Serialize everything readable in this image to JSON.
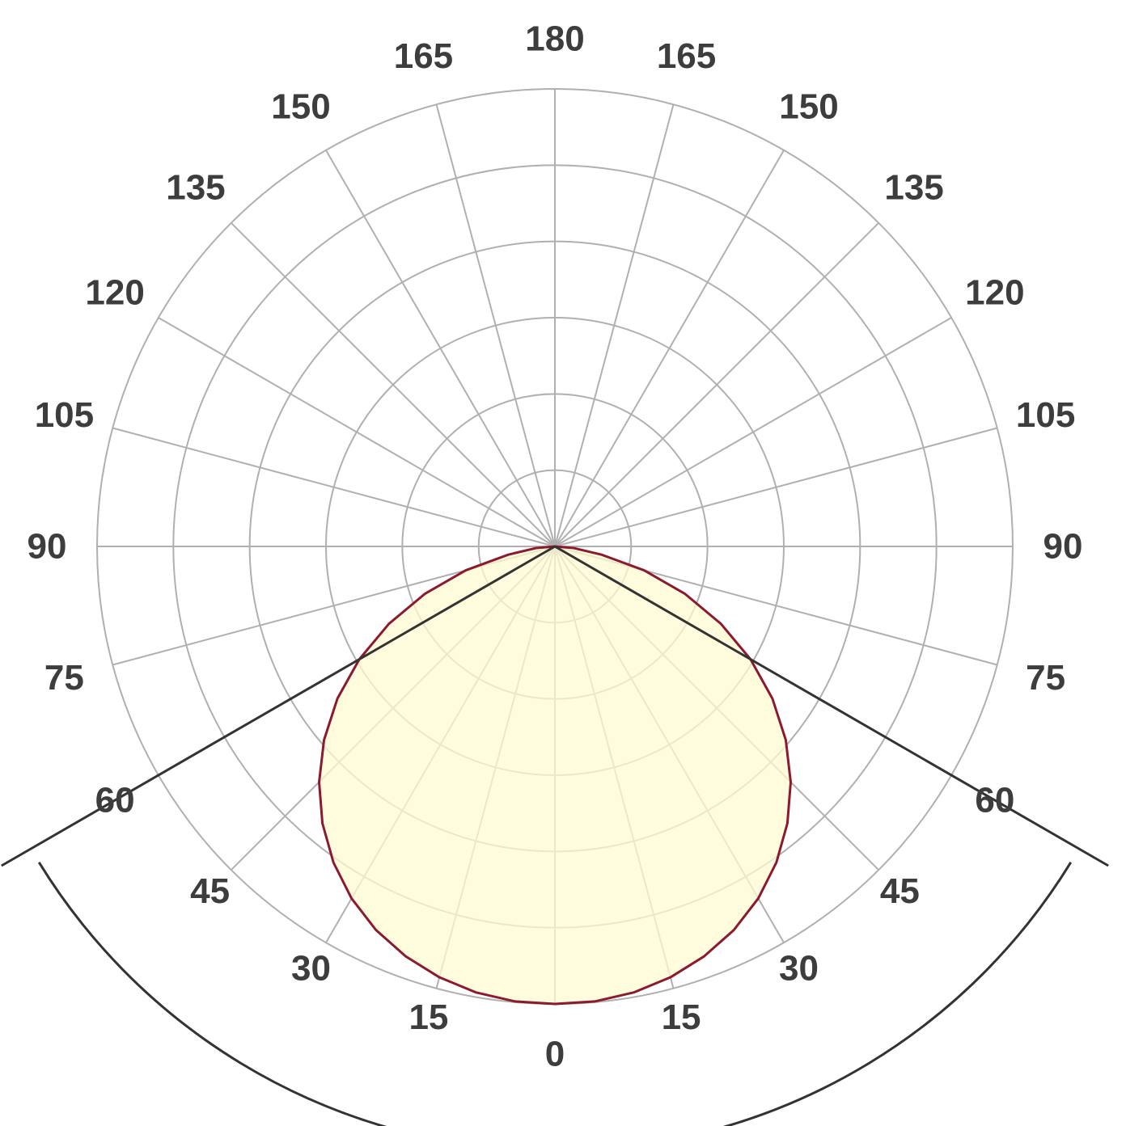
{
  "chart_data": {
    "type": "polar",
    "title": "",
    "angle_labels": [
      {
        "angle": 180,
        "label": "180"
      },
      {
        "angle": -165,
        "label": "165"
      },
      {
        "angle": 165,
        "label": "165"
      },
      {
        "angle": -150,
        "label": "150"
      },
      {
        "angle": 150,
        "label": "150"
      },
      {
        "angle": -135,
        "label": "135"
      },
      {
        "angle": 135,
        "label": "135"
      },
      {
        "angle": -120,
        "label": "120"
      },
      {
        "angle": 120,
        "label": "120"
      },
      {
        "angle": -105,
        "label": "105"
      },
      {
        "angle": 105,
        "label": "105"
      },
      {
        "angle": -90,
        "label": "90"
      },
      {
        "angle": 90,
        "label": "90"
      },
      {
        "angle": -75,
        "label": "75"
      },
      {
        "angle": 75,
        "label": "75"
      },
      {
        "angle": -60,
        "label": "60"
      },
      {
        "angle": 60,
        "label": "60"
      },
      {
        "angle": -45,
        "label": "45"
      },
      {
        "angle": 45,
        "label": "45"
      },
      {
        "angle": -30,
        "label": "30"
      },
      {
        "angle": 30,
        "label": "30"
      },
      {
        "angle": -15,
        "label": "15"
      },
      {
        "angle": 15,
        "label": "15"
      },
      {
        "angle": 0,
        "label": "0"
      }
    ],
    "spoke_step_deg": 15,
    "rings": 6,
    "r_max": 6,
    "curve": {
      "angles": [
        0,
        5,
        10,
        15,
        20,
        25,
        30,
        35,
        40,
        45,
        50,
        55,
        60,
        65,
        70,
        75,
        80,
        85,
        90
      ],
      "values": [
        6.0,
        5.99,
        5.94,
        5.85,
        5.72,
        5.55,
        5.33,
        5.06,
        4.74,
        4.37,
        3.95,
        3.48,
        2.96,
        2.4,
        1.81,
        1.21,
        0.62,
        0.25,
        0
      ]
    },
    "beam_angle_deg": 60,
    "colors": {
      "grid": "#b0b0b0",
      "curve_stroke": "#8b1a2e",
      "curve_fill": "#fdfbd2",
      "beam_lines": "#333333",
      "labels": "#3d3d3d"
    }
  }
}
